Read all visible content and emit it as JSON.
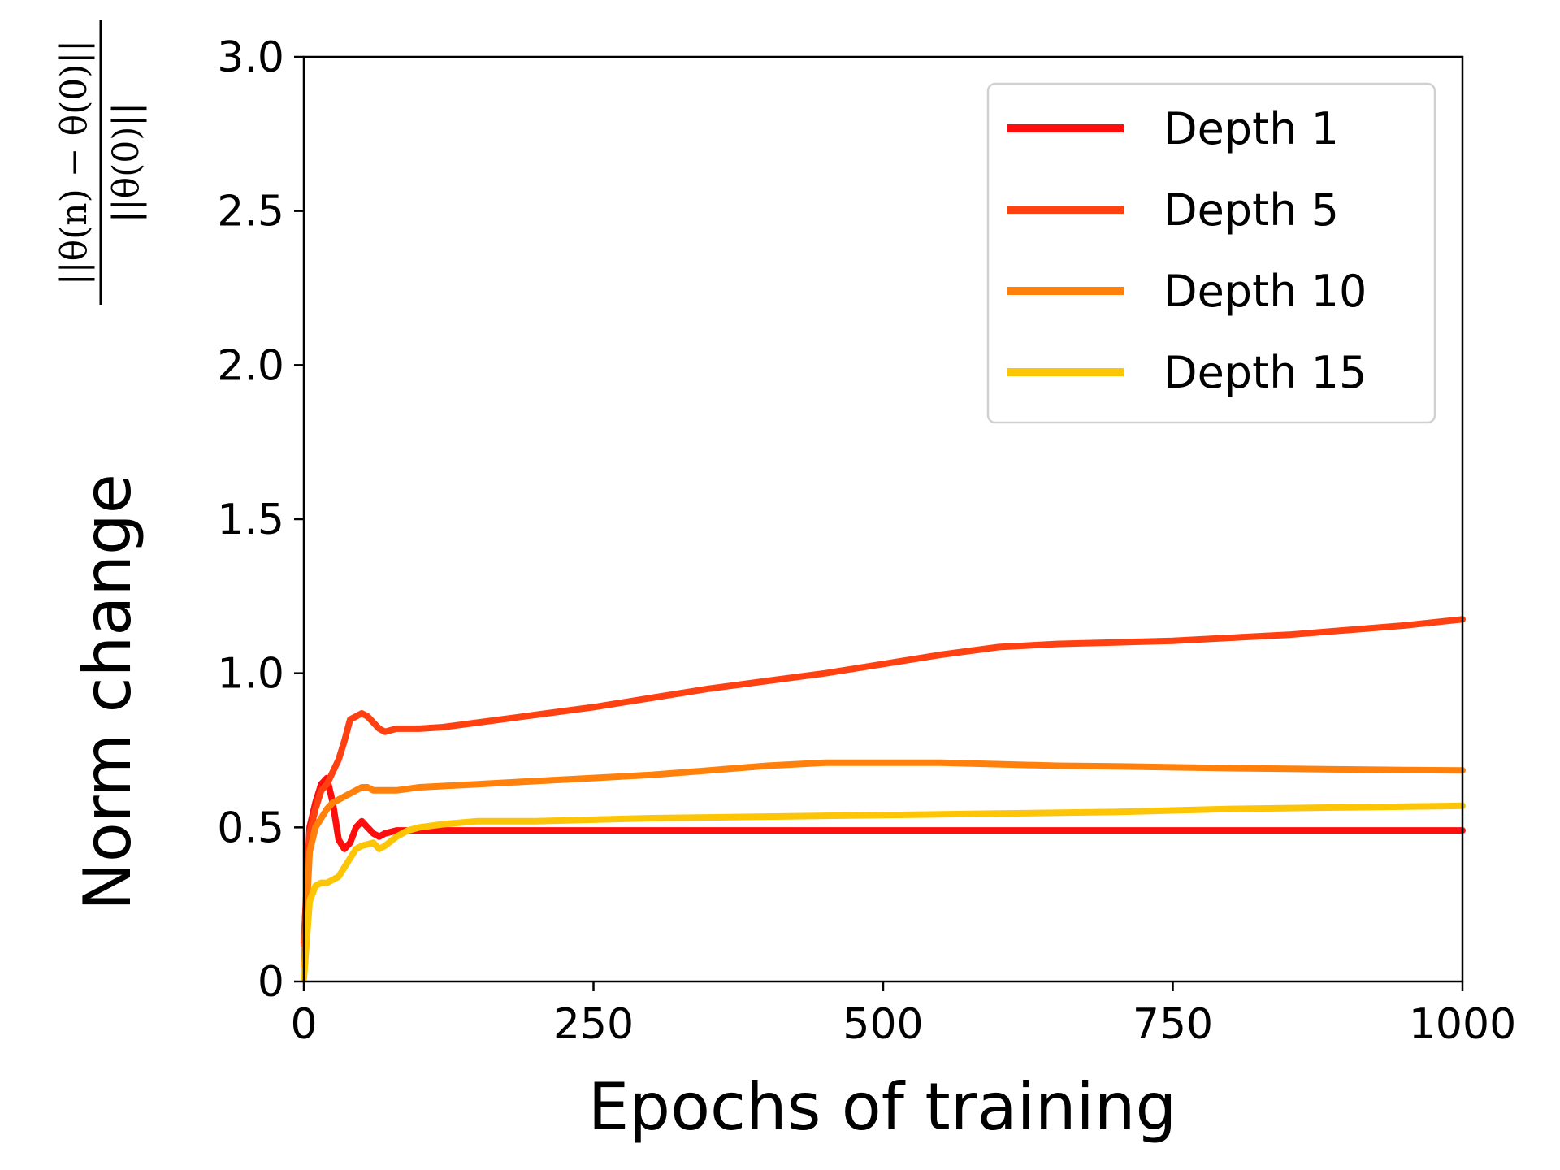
{
  "chart_data": {
    "type": "line",
    "title": "",
    "xlabel": "Epochs of training",
    "ylabel": "Norm change",
    "ylabel_fraction": {
      "numerator": "||θ(n) − θ(0)||",
      "denominator": "||θ(0)||"
    },
    "xlim": [
      0,
      1000
    ],
    "ylim": [
      0,
      3.0
    ],
    "xticks": [
      0,
      250,
      500,
      750,
      1000
    ],
    "xtick_labels": [
      "0",
      "250",
      "500",
      "750",
      "1000"
    ],
    "yticks": [
      0,
      0.5,
      1.0,
      1.5,
      2.0,
      2.5,
      3.0
    ],
    "ytick_labels": [
      "0",
      "0.5",
      "1.0",
      "1.5",
      "2.0",
      "2.5",
      "3.0"
    ],
    "grid": false,
    "legend_position": "top-right",
    "series": [
      {
        "name": "Depth 1",
        "color": "#ff0d0d",
        "x": [
          0,
          5,
          10,
          15,
          20,
          25,
          30,
          35,
          40,
          45,
          50,
          55,
          60,
          65,
          70,
          80,
          90,
          100,
          120,
          150,
          200,
          300,
          400,
          500,
          600,
          700,
          800,
          900,
          1000
        ],
        "y": [
          0.12,
          0.5,
          0.58,
          0.64,
          0.66,
          0.58,
          0.46,
          0.43,
          0.45,
          0.5,
          0.52,
          0.5,
          0.48,
          0.47,
          0.48,
          0.49,
          0.49,
          0.49,
          0.49,
          0.49,
          0.49,
          0.49,
          0.49,
          0.49,
          0.49,
          0.49,
          0.49,
          0.49,
          0.49
        ]
      },
      {
        "name": "Depth 5",
        "color": "#ff4010",
        "x": [
          0,
          5,
          10,
          15,
          20,
          25,
          30,
          35,
          40,
          45,
          50,
          55,
          60,
          65,
          70,
          80,
          90,
          100,
          120,
          150,
          200,
          250,
          300,
          350,
          400,
          450,
          500,
          550,
          600,
          650,
          700,
          750,
          800,
          850,
          900,
          950,
          1000
        ],
        "y": [
          0.12,
          0.48,
          0.56,
          0.62,
          0.64,
          0.68,
          0.72,
          0.78,
          0.85,
          0.86,
          0.87,
          0.86,
          0.84,
          0.82,
          0.81,
          0.82,
          0.82,
          0.82,
          0.825,
          0.84,
          0.865,
          0.89,
          0.92,
          0.95,
          0.975,
          1.0,
          1.03,
          1.06,
          1.085,
          1.095,
          1.1,
          1.105,
          1.115,
          1.125,
          1.14,
          1.155,
          1.175
        ]
      },
      {
        "name": "Depth 10",
        "color": "#ff800a",
        "x": [
          0,
          5,
          10,
          15,
          20,
          25,
          30,
          35,
          40,
          45,
          50,
          55,
          60,
          70,
          80,
          100,
          150,
          200,
          250,
          300,
          350,
          400,
          450,
          500,
          550,
          600,
          650,
          700,
          750,
          800,
          850,
          900,
          950,
          1000
        ],
        "y": [
          0.05,
          0.42,
          0.5,
          0.53,
          0.56,
          0.58,
          0.59,
          0.6,
          0.61,
          0.62,
          0.63,
          0.63,
          0.62,
          0.62,
          0.62,
          0.63,
          0.64,
          0.65,
          0.66,
          0.67,
          0.685,
          0.7,
          0.71,
          0.71,
          0.71,
          0.705,
          0.7,
          0.698,
          0.695,
          0.692,
          0.69,
          0.688,
          0.686,
          0.685
        ]
      },
      {
        "name": "Depth 15",
        "color": "#fcc505",
        "x": [
          0,
          5,
          10,
          15,
          20,
          30,
          40,
          45,
          50,
          60,
          65,
          70,
          80,
          90,
          100,
          120,
          150,
          200,
          250,
          300,
          400,
          500,
          600,
          700,
          800,
          900,
          1000
        ],
        "y": [
          0.01,
          0.26,
          0.31,
          0.32,
          0.32,
          0.34,
          0.4,
          0.43,
          0.44,
          0.45,
          0.43,
          0.44,
          0.47,
          0.49,
          0.5,
          0.51,
          0.52,
          0.52,
          0.525,
          0.53,
          0.535,
          0.54,
          0.545,
          0.55,
          0.56,
          0.565,
          0.57
        ]
      }
    ]
  }
}
